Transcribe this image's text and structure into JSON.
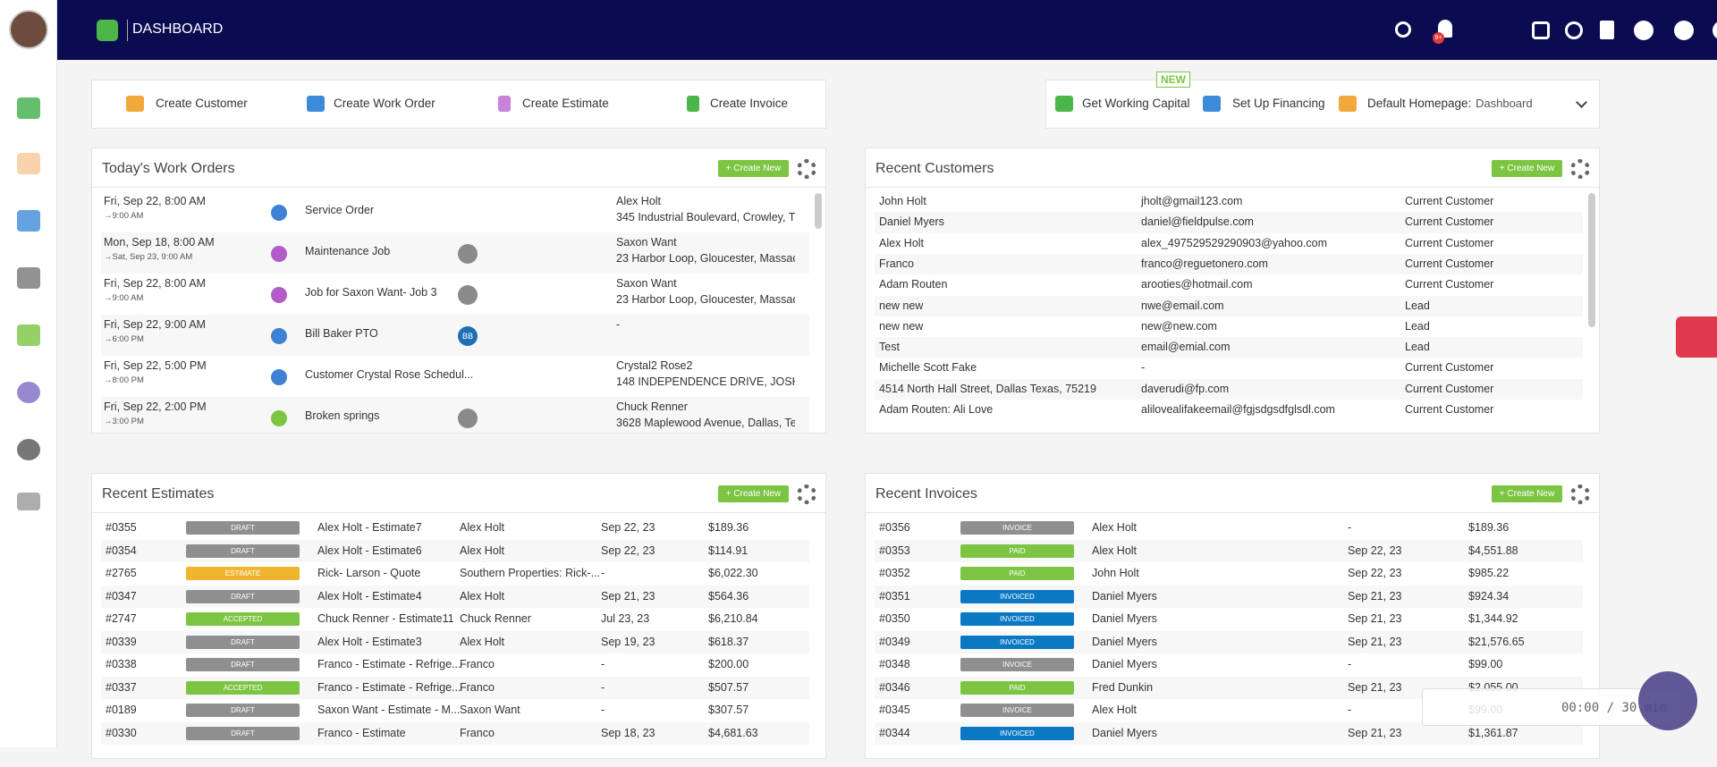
{
  "header": {
    "title": "DASHBOARD",
    "notification_badge": "9+"
  },
  "quick_actions": [
    "Create Customer",
    "Create Work Order",
    "Create Estimate",
    "Create Invoice"
  ],
  "top_right": {
    "badge": "NEW",
    "working_capital": "Get Working Capital",
    "financing": "Set Up Financing",
    "homepage_label": "Default Homepage:",
    "homepage_value": "Dashboard"
  },
  "status_colors": {
    "DRAFT": "#8f8f8f",
    "ESTIMATE": "#f0b52e",
    "ACCEPTED": "#7cc542",
    "INVOICE": "#8f8f8f",
    "PAID": "#7cc542",
    "INVOICED": "#0b78c4"
  },
  "work_orders": {
    "title": "Today's Work Orders",
    "create": "+ Create New",
    "rows": [
      {
        "start": "Fri, Sep 22, 8:00 AM",
        "end": "→9:00 AM",
        "name": "Service Order",
        "icon_color": "#3d82d4",
        "client": "Alex Holt",
        "address": "345 Industrial Boulevard, Crowley, T..."
      },
      {
        "start": "Mon, Sep 18, 8:00 AM",
        "end": "→Sat, Sep 23, 9:00 AM",
        "name": "Maintenance Job",
        "icon_color": "#b35cc9",
        "assignee_photo": true,
        "client": "Saxon Want",
        "address": "23 Harbor Loop, Gloucester, Massac..."
      },
      {
        "start": "Fri, Sep 22, 8:00 AM",
        "end": "→9:00 AM",
        "name": "Job for Saxon Want- Job 3",
        "icon_color": "#b35cc9",
        "assignee_photo": true,
        "client": "Saxon Want",
        "address": "23 Harbor Loop, Gloucester, Massac..."
      },
      {
        "start": "Fri, Sep 22, 9:00 AM",
        "end": "→6:00 PM",
        "name": "Bill Baker PTO",
        "icon_color": "#3d82d4",
        "assignee": "BB",
        "client": "-"
      },
      {
        "start": "Fri, Sep 22, 5:00 PM",
        "end": "→8:00 PM",
        "name": "Customer Crystal Rose Schedul...",
        "icon_color": "#3d82d4",
        "client": "Crystal2 Rose2",
        "address": "148 INDEPENDENCE DRIVE, JOSHU..."
      },
      {
        "start": "Fri, Sep 22, 2:00 PM",
        "end": "→3:00 PM",
        "name": "Broken springs",
        "icon_color": "#7cc542",
        "assignee_photo": true,
        "client": "Chuck Renner",
        "address": "3628 Maplewood Avenue, Dallas, Te..."
      }
    ]
  },
  "customers": {
    "title": "Recent Customers",
    "create": "+ Create New",
    "rows": [
      {
        "name": "John Holt",
        "email": "jholt@gmail123.com",
        "status": "Current Customer"
      },
      {
        "name": "Daniel Myers",
        "email": "daniel@fieldpulse.com",
        "status": "Current Customer"
      },
      {
        "name": "Alex Holt",
        "email": "alex_497529529290903@yahoo.com",
        "status": "Current Customer"
      },
      {
        "name": "Franco",
        "email": "franco@reguetonero.com",
        "status": "Current Customer"
      },
      {
        "name": "Adam Routen",
        "email": "arooties@hotmail.com",
        "status": "Current Customer"
      },
      {
        "name": "new new",
        "email": "nwe@email.com",
        "status": "Lead"
      },
      {
        "name": "new new",
        "email": "new@new.com",
        "status": "Lead"
      },
      {
        "name": "Test",
        "email": "email@emial.com",
        "status": "Lead"
      },
      {
        "name": "Michelle Scott Fake",
        "email": "-",
        "status": "Current Customer"
      },
      {
        "name": "4514 North Hall Street, Dallas Texas, 75219",
        "email": "daverudi@fp.com",
        "status": "Current Customer"
      },
      {
        "name": "Adam Routen: Ali Love",
        "email": "alilovealifakeemail@fgjsdgsdfglsdl.com",
        "status": "Current Customer"
      }
    ]
  },
  "estimates": {
    "title": "Recent Estimates",
    "create": "+ Create New",
    "rows": [
      {
        "id": "#0355",
        "status": "DRAFT",
        "title": "Alex Holt - Estimate7",
        "client": "Alex Holt",
        "date": "Sep 22, 23",
        "amount": "$189.36"
      },
      {
        "id": "#0354",
        "status": "DRAFT",
        "title": "Alex Holt - Estimate6",
        "client": "Alex Holt",
        "date": "Sep 22, 23",
        "amount": "$114.91"
      },
      {
        "id": "#2765",
        "status": "ESTIMATE",
        "title": "Rick- Larson - Quote",
        "client": "Southern Properties: Rick-...",
        "date": "-",
        "amount": "$6,022.30"
      },
      {
        "id": "#0347",
        "status": "DRAFT",
        "title": "Alex Holt - Estimate4",
        "client": "Alex Holt",
        "date": "Sep 21, 23",
        "amount": "$564.36"
      },
      {
        "id": "#2747",
        "status": "ACCEPTED",
        "title": "Chuck Renner - Estimate11",
        "client": "Chuck Renner",
        "date": "Jul 23, 23",
        "amount": "$6,210.84"
      },
      {
        "id": "#0339",
        "status": "DRAFT",
        "title": "Alex Holt - Estimate3",
        "client": "Alex Holt",
        "date": "Sep 19, 23",
        "amount": "$618.37"
      },
      {
        "id": "#0338",
        "status": "DRAFT",
        "title": "Franco - Estimate - Refrige...",
        "client": "Franco",
        "date": "-",
        "amount": "$200.00"
      },
      {
        "id": "#0337",
        "status": "ACCEPTED",
        "title": "Franco - Estimate - Refrige...",
        "client": "Franco",
        "date": "-",
        "amount": "$507.57"
      },
      {
        "id": "#0189",
        "status": "DRAFT",
        "title": "Saxon Want - Estimate - M...",
        "client": "Saxon Want",
        "date": "-",
        "amount": "$307.57"
      },
      {
        "id": "#0330",
        "status": "DRAFT",
        "title": "Franco - Estimate",
        "client": "Franco",
        "date": "Sep 18, 23",
        "amount": "$4,681.63"
      }
    ]
  },
  "invoices": {
    "title": "Recent Invoices",
    "create": "+ Create New",
    "rows": [
      {
        "id": "#0356",
        "status": "INVOICE",
        "client": "Alex Holt",
        "date": "-",
        "amount": "$189.36"
      },
      {
        "id": "#0353",
        "status": "PAID",
        "client": "Alex Holt",
        "date": "Sep 22, 23",
        "amount": "$4,551.88"
      },
      {
        "id": "#0352",
        "status": "PAID",
        "client": "John Holt",
        "date": "Sep 22, 23",
        "amount": "$985.22"
      },
      {
        "id": "#0351",
        "status": "INVOICED",
        "client": "Daniel Myers",
        "date": "Sep 21, 23",
        "amount": "$924.34"
      },
      {
        "id": "#0350",
        "status": "INVOICED",
        "client": "Daniel Myers",
        "date": "Sep 21, 23",
        "amount": "$1,344.92"
      },
      {
        "id": "#0349",
        "status": "INVOICED",
        "client": "Daniel Myers",
        "date": "Sep 21, 23",
        "amount": "$21,576.65"
      },
      {
        "id": "#0348",
        "status": "INVOICE",
        "client": "Daniel Myers",
        "date": "-",
        "amount": "$99.00"
      },
      {
        "id": "#0346",
        "status": "PAID",
        "client": "Fred Dunkin",
        "date": "Sep 21, 23",
        "amount": "$2,055.00"
      },
      {
        "id": "#0345",
        "status": "INVOICE",
        "client": "Alex Holt",
        "date": "-",
        "amount": "$99.00"
      },
      {
        "id": "#0344",
        "status": "INVOICED",
        "client": "Daniel Myers",
        "date": "Sep 21, 23",
        "amount": "$1,361.87"
      }
    ]
  },
  "recorder": {
    "timer": "00:00 / 30 min"
  }
}
